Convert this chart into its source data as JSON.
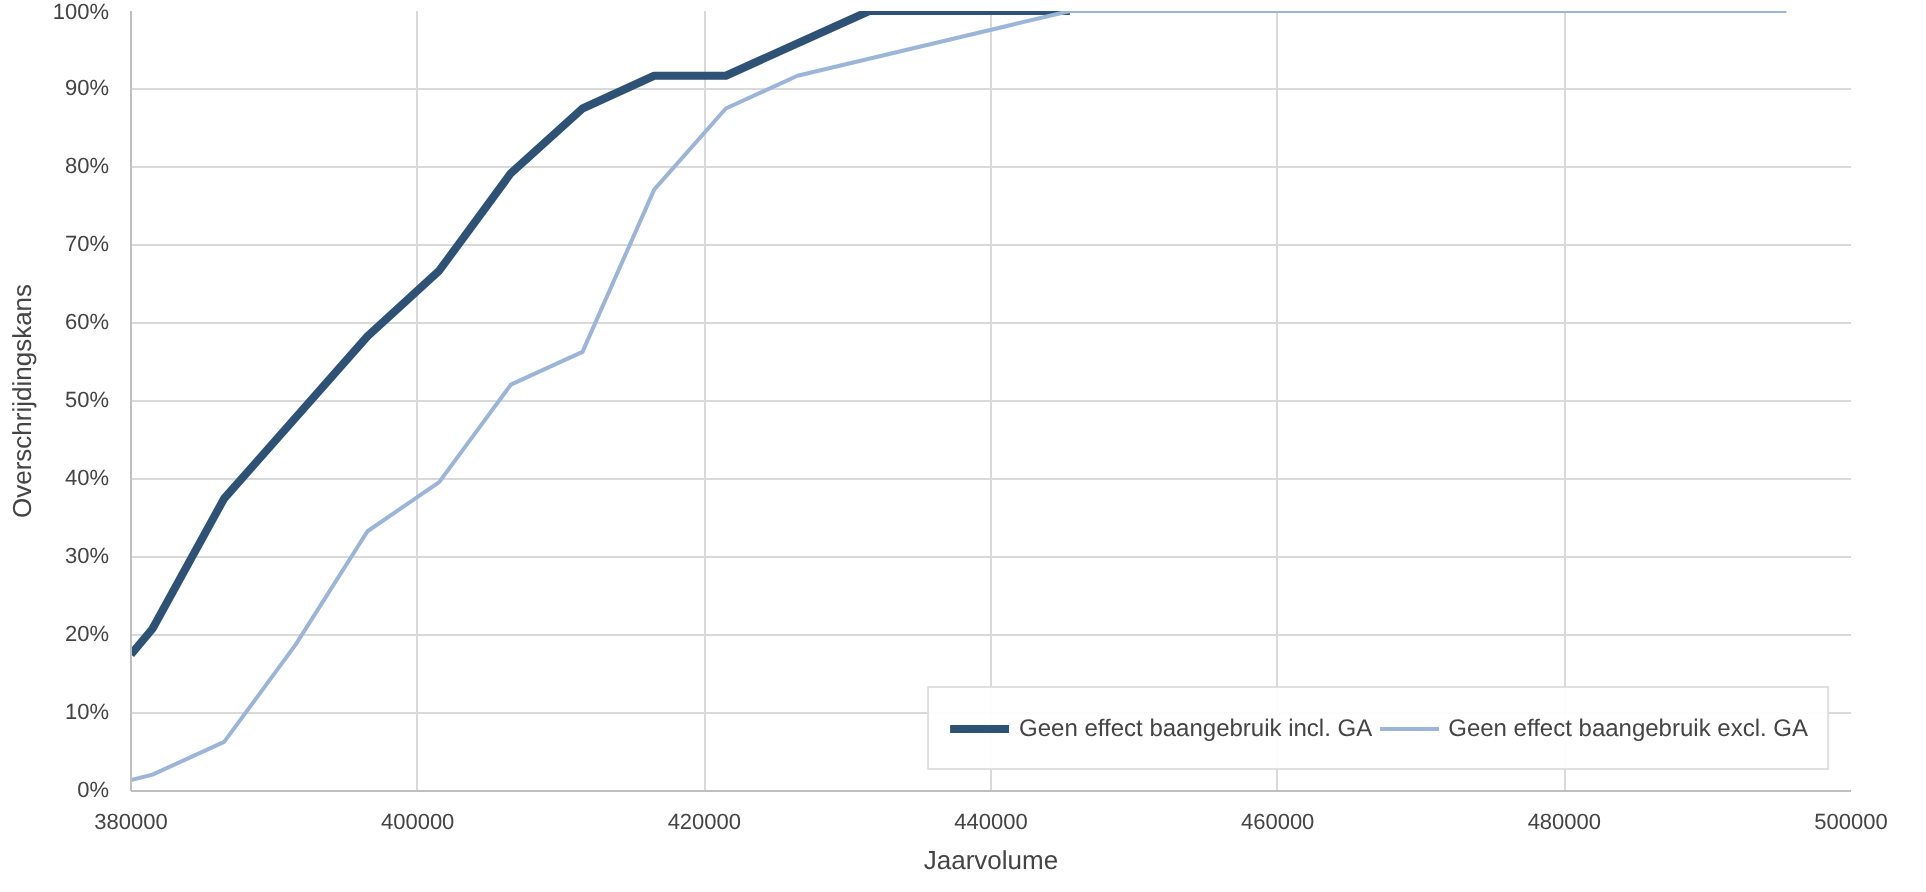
{
  "chart_data": {
    "type": "line",
    "xlabel": "Jaarvolume",
    "ylabel": "Overschrijdingskans",
    "xlim": [
      380000,
      500000
    ],
    "xticks": [
      380000,
      400000,
      420000,
      440000,
      460000,
      480000,
      500000
    ],
    "ylim": [
      0,
      1
    ],
    "yticks": [
      {
        "value": 0,
        "label": "0%"
      },
      {
        "value": 0.1,
        "label": "10%"
      },
      {
        "value": 0.2,
        "label": "20%"
      },
      {
        "value": 0.3,
        "label": "30%"
      },
      {
        "value": 0.4,
        "label": "40%"
      },
      {
        "value": 0.5,
        "label": "50%"
      },
      {
        "value": 0.6,
        "label": "60%"
      },
      {
        "value": 0.7,
        "label": "70%"
      },
      {
        "value": 0.8,
        "label": "80%"
      },
      {
        "value": 0.9,
        "label": "90%"
      },
      {
        "value": 1,
        "label": "100%"
      }
    ],
    "grid": true,
    "legend": "bottom right",
    "marker": "none",
    "line_style": "solid",
    "series": [
      {
        "name": "Geen effect baangebruik incl. GA",
        "color": "#2e5275",
        "x": [
          380000,
          381500,
          386500,
          396500,
          401500,
          406500,
          411500,
          416500,
          421500,
          431500,
          445500
        ],
        "values": [
          0.175,
          0.208,
          0.375,
          0.583,
          0.667,
          0.792,
          0.875,
          0.917,
          0.917,
          1,
          1
        ]
      },
      {
        "name": "Geen effect baangebruik excl. GA",
        "color": "#9bb5d8",
        "x": [
          380000,
          381500,
          386500,
          391500,
          396500,
          401500,
          406500,
          411500,
          416500,
          421500,
          426500,
          445500,
          495500
        ],
        "values": [
          0.014,
          0.021,
          0.063,
          0.188,
          0.333,
          0.396,
          0.521,
          0.563,
          0.771,
          0.875,
          0.917,
          1,
          1
        ]
      }
    ]
  }
}
